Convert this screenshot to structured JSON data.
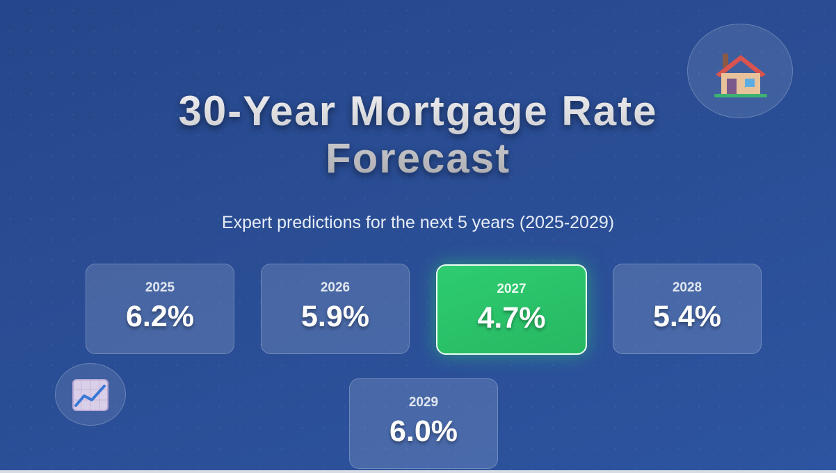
{
  "header": {
    "title_line1": "30-Year Mortgage Rate",
    "title_line2": "Forecast",
    "subtitle": "Expert predictions for the next 5 years (2025-2029)"
  },
  "forecasts": [
    {
      "year": "2025",
      "rate": "6.2%",
      "highlighted": false
    },
    {
      "year": "2026",
      "rate": "5.9%",
      "highlighted": false
    },
    {
      "year": "2027",
      "rate": "4.7%",
      "highlighted": true
    },
    {
      "year": "2028",
      "rate": "5.4%",
      "highlighted": false
    },
    {
      "year": "2029",
      "rate": "6.0%",
      "highlighted": false
    }
  ],
  "decorations": {
    "top_icon": "house-icon",
    "bottom_icon": "chart-increasing-icon"
  },
  "colors": {
    "background": "#2a4d94",
    "card": "#4a6aa8",
    "highlight": "#2ecc71"
  }
}
